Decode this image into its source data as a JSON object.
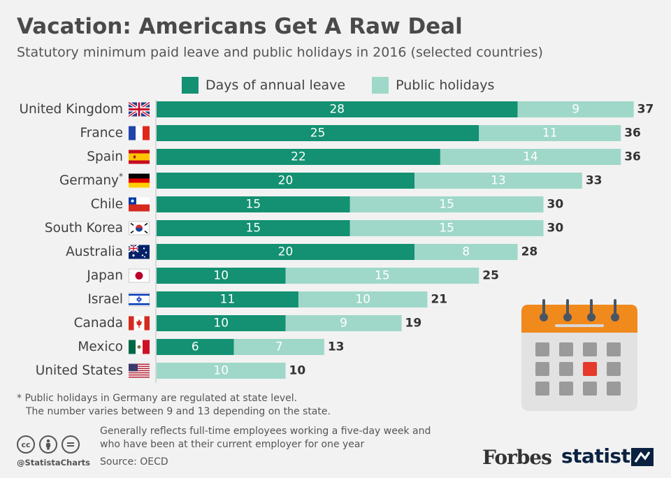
{
  "title": "Vacation: Americans Get A Raw Deal",
  "subtitle": "Statutory minimum paid leave and public holidays in 2016 (selected countries)",
  "colors": {
    "annual": "#139172",
    "holidays": "#9fd8c8",
    "background": "#f2f2f2",
    "calendar_top": "#f08a1d",
    "calendar_highlight": "#e5392b"
  },
  "chart_data": {
    "type": "bar",
    "orientation": "horizontal",
    "stacked": true,
    "categories": [
      "United Kingdom",
      "France",
      "Spain",
      "Germany",
      "Chile",
      "South Korea",
      "Australia",
      "Japan",
      "Israel",
      "Canada",
      "Mexico",
      "United States"
    ],
    "category_markers": [
      "",
      "",
      "",
      "*",
      "",
      "",
      "",
      "",
      "",
      "",
      "",
      ""
    ],
    "flags": [
      "uk-flag-icon",
      "france-flag-icon",
      "spain-flag-icon",
      "germany-flag-icon",
      "chile-flag-icon",
      "south-korea-flag-icon",
      "australia-flag-icon",
      "japan-flag-icon",
      "israel-flag-icon",
      "canada-flag-icon",
      "mexico-flag-icon",
      "us-flag-icon"
    ],
    "series": [
      {
        "name": "Days of annual leave",
        "values": [
          28,
          25,
          22,
          20,
          15,
          15,
          20,
          10,
          11,
          10,
          6,
          0
        ]
      },
      {
        "name": "Public holidays",
        "values": [
          9,
          11,
          14,
          13,
          15,
          15,
          8,
          15,
          10,
          9,
          7,
          10
        ]
      }
    ],
    "totals": [
      37,
      36,
      36,
      33,
      30,
      30,
      28,
      25,
      21,
      19,
      13,
      10
    ],
    "xlim": [
      0,
      37
    ],
    "legend_position": "top",
    "grid": false
  },
  "footnote": {
    "line1": "* Public holidays in Germany are regulated at state level.",
    "line2": "The number varies between 9 and 13 depending on the state."
  },
  "note": {
    "line1": "Generally reflects full-time employees working a five-day week and",
    "line2": "who have been at their current employer for one year"
  },
  "source": "Source: OECD",
  "handle": "@StatistaCharts",
  "brands": {
    "forbes": "Forbes",
    "statista": "statista"
  },
  "icons": [
    "cc-icon",
    "attribution-icon",
    "no-derivatives-icon",
    "calendar-icon"
  ]
}
